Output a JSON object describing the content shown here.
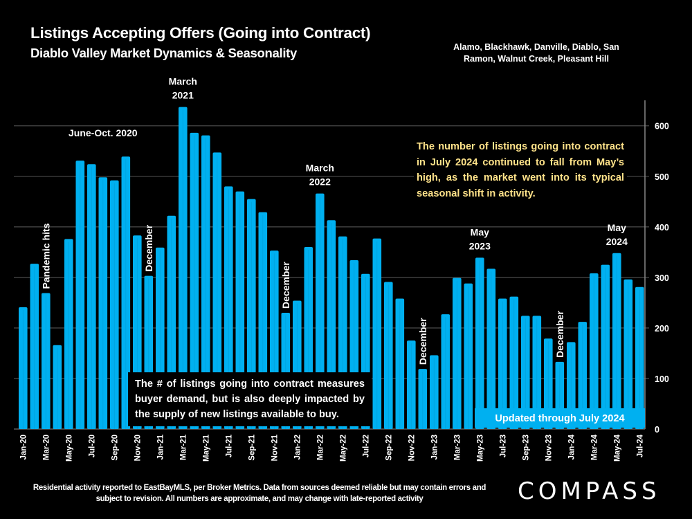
{
  "header": {
    "title": "Listings Accepting Offers (Going into Contract)",
    "subtitle": "Diablo Valley Market Dynamics & Seasonality",
    "regions": "Alamo, Blackhawk, Danville, Diablo, San Ramon, Walnut Creek, Pleasant Hill"
  },
  "colors": {
    "background": "#000000",
    "bar": "#00B0F0",
    "gridline": "#3A3A3A",
    "note_text": "#FFE38A",
    "text": "#FFFFFF"
  },
  "notes": {
    "yellow": "The number of listings going into contract in July 2024 continued to fall from May’s high, as the market went into its typical seasonal shift in activity.",
    "boxed": "The # of listings going into contract measures buyer demand, but is also deeply impacted by the supply of new listings available to buy.",
    "updated": "Updated through July 2024"
  },
  "footer": {
    "footnote": "Residential activity reported to EastBayMLS, per Broker Metrics. Data from sources deemed reliable but may contain errors and subject to revision. All numbers are approximate, and may change with late-reported activity",
    "logo": "COMPASS"
  },
  "chart_data": {
    "type": "bar",
    "title": "Listings Accepting Offers (Going into Contract)",
    "xlabel": "",
    "ylabel": "",
    "ylim": [
      0,
      650
    ],
    "yticks": [
      0,
      100,
      200,
      300,
      400,
      500,
      600
    ],
    "y_axis_side": "right",
    "grid": true,
    "categories": [
      "Jan-20",
      "Feb-20",
      "Mar-20",
      "Apr-20",
      "May-20",
      "Jun-20",
      "Jul-20",
      "Aug-20",
      "Sep-20",
      "Oct-20",
      "Nov-20",
      "Dec-20",
      "Jan-21",
      "Feb-21",
      "Mar-21",
      "Apr-21",
      "May-21",
      "Jun-21",
      "Jul-21",
      "Aug-21",
      "Sep-21",
      "Oct-21",
      "Nov-21",
      "Dec-21",
      "Jan-22",
      "Feb-22",
      "Mar-22",
      "Apr-22",
      "May-22",
      "Jun-22",
      "Jul-22",
      "Aug-22",
      "Sep-22",
      "Oct-22",
      "Nov-22",
      "Dec-22",
      "Jan-23",
      "Feb-23",
      "Mar-23",
      "Apr-23",
      "May-23",
      "Jun-23",
      "Jul-23",
      "Aug-23",
      "Sep-23",
      "Oct-23",
      "Nov-23",
      "Dec-23",
      "Jan-24",
      "Feb-24",
      "Mar-24",
      "Apr-24",
      "May-24",
      "Jun-24",
      "Jul-24"
    ],
    "tick_labels_shown_every": 2,
    "values": [
      241,
      327,
      269,
      166,
      376,
      531,
      524,
      498,
      492,
      539,
      383,
      303,
      359,
      422,
      637,
      586,
      581,
      547,
      480,
      470,
      455,
      429,
      353,
      230,
      254,
      360,
      466,
      413,
      381,
      334,
      307,
      377,
      291,
      258,
      175,
      119,
      146,
      227,
      299,
      288,
      339,
      317,
      258,
      262,
      224,
      224,
      179,
      133,
      172,
      212,
      308,
      325,
      348,
      296,
      281
    ],
    "annotations": [
      {
        "text": "Pandemic hits",
        "at": "Mar-20",
        "orientation": "vertical"
      },
      {
        "text": "June-Oct. 2020",
        "at": "Aug-20",
        "orientation": "horizontal"
      },
      {
        "text": "December",
        "at": "Dec-20",
        "orientation": "vertical"
      },
      {
        "text": "March 2021",
        "at": "Mar-21",
        "orientation": "horizontal"
      },
      {
        "text": "December",
        "at": "Dec-21",
        "orientation": "vertical"
      },
      {
        "text": "March 2022",
        "at": "Mar-22",
        "orientation": "horizontal"
      },
      {
        "text": "December",
        "at": "Dec-22",
        "orientation": "vertical"
      },
      {
        "text": "May 2023",
        "at": "May-23",
        "orientation": "horizontal"
      },
      {
        "text": "December",
        "at": "Dec-23",
        "orientation": "vertical"
      },
      {
        "text": "May 2024",
        "at": "May-24",
        "orientation": "horizontal"
      }
    ]
  }
}
